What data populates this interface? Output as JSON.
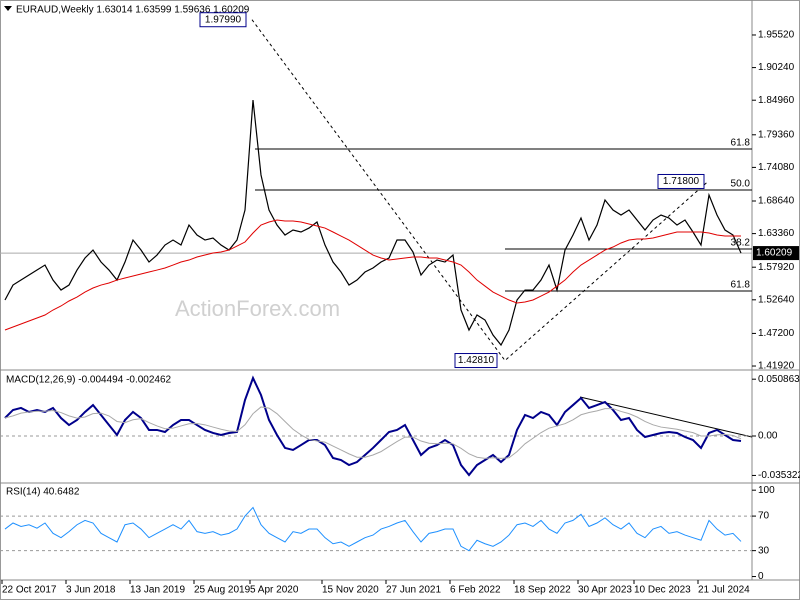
{
  "chart_data": [
    {
      "type": "line",
      "title": "EURAUD,Weekly  1.63014 1.63599 1.59636 1.60209",
      "watermark": "ActionForex.com",
      "categories": [
        "22 Oct 2017",
        null,
        null,
        null,
        null,
        null,
        null,
        null,
        "3 Jun 2018",
        null,
        null,
        null,
        null,
        null,
        null,
        null,
        "13 Jan 2019",
        null,
        null,
        null,
        null,
        null,
        null,
        null,
        "25 Aug 2019",
        null,
        null,
        null,
        null,
        null,
        null,
        "5 Apr 2020",
        null,
        null,
        null,
        null,
        null,
        null,
        null,
        null,
        "15 Nov 2020",
        null,
        null,
        null,
        null,
        null,
        null,
        null,
        "27 Jun 2021",
        null,
        null,
        null,
        null,
        null,
        null,
        null,
        "6 Feb 2022",
        null,
        null,
        null,
        null,
        null,
        null,
        null,
        "18 Sep 2022",
        null,
        null,
        null,
        null,
        null,
        null,
        null,
        "30 Apr 2023",
        null,
        null,
        null,
        null,
        null,
        null,
        "10 Dec 2023",
        null,
        null,
        null,
        null,
        null,
        null,
        null,
        "21 Jul 2024",
        null,
        null,
        null,
        null,
        null
      ],
      "series": [
        {
          "color": "#000000",
          "values": [
            1.5261,
            1.5503,
            1.5584,
            1.5665,
            1.5746,
            1.5827,
            1.5584,
            1.5422,
            1.5503,
            1.5746,
            1.5941,
            1.607,
            1.5876,
            1.5746,
            1.5584,
            1.5876,
            1.6232,
            1.607,
            1.5876,
            1.5989,
            1.6151,
            1.6232,
            1.6151,
            1.6475,
            1.6313,
            1.6232,
            1.6265,
            1.6151,
            1.607,
            1.6232,
            1.6718,
            1.8499,
            1.7285,
            1.6718,
            1.6475,
            1.6313,
            1.6394,
            1.6362,
            1.6426,
            1.6524,
            1.6151,
            1.5876,
            1.5714,
            1.5503,
            1.5584,
            1.5714,
            1.5779,
            1.5876,
            1.5941,
            1.6232,
            1.6232,
            1.6038,
            1.5665,
            1.5827,
            1.5908,
            1.5876,
            1.5989,
            1.5099,
            1.4775,
            1.5018,
            1.4937,
            1.4694,
            1.4532,
            1.4775,
            1.5261,
            1.5422,
            1.5422,
            1.5584,
            1.5827,
            1.5422,
            1.607,
            1.6313,
            1.6588,
            1.6232,
            1.6475,
            1.688,
            1.6718,
            1.6637,
            1.6718,
            1.6556,
            1.6394,
            1.6556,
            1.6637,
            1.6588,
            1.6475,
            1.6556,
            1.6362,
            1.6151,
            1.6961,
            1.6637,
            1.6394,
            1.6313,
            1.6021
          ]
        },
        {
          "color": "#e00000",
          "values": [
            1.4775,
            1.4824,
            1.4872,
            1.4921,
            1.4969,
            1.5018,
            1.5099,
            1.5164,
            1.5245,
            1.5309,
            1.539,
            1.5455,
            1.5503,
            1.5536,
            1.5584,
            1.5617,
            1.5649,
            1.5682,
            1.5714,
            1.5746,
            1.5779,
            1.5827,
            1.5876,
            1.5908,
            1.5957,
            1.5989,
            1.6022,
            1.6038,
            1.607,
            1.6135,
            1.62,
            1.6346,
            1.6475,
            1.6524,
            1.6556,
            1.654,
            1.654,
            1.6524,
            1.6491,
            1.6459,
            1.6426,
            1.6362,
            1.6297,
            1.6232,
            1.6151,
            1.607,
            1.5989,
            1.5941,
            1.5908,
            1.5924,
            1.5941,
            1.5957,
            1.5957,
            1.5941,
            1.5941,
            1.5908,
            1.5876,
            1.5827,
            1.5714,
            1.5584,
            1.5487,
            1.539,
            1.5325,
            1.5261,
            1.5212,
            1.5228,
            1.5261,
            1.5325,
            1.539,
            1.5487,
            1.5584,
            1.5714,
            1.5827,
            1.5908,
            1.5989,
            1.607,
            1.6119,
            1.6184,
            1.6232,
            1.6248,
            1.6248,
            1.6265,
            1.6297,
            1.633,
            1.6362,
            1.6362,
            1.6362,
            1.6362,
            1.6346,
            1.6313,
            1.6297,
            1.6297,
            1.6297
          ]
        }
      ],
      "ylim": [
        1.416,
        2.0086
      ],
      "yticks": [
        {
          "value": 1.9552,
          "label": "1.95520"
        },
        {
          "value": 1.9024,
          "label": "1.90240"
        },
        {
          "value": 1.8496,
          "label": "1.84960"
        },
        {
          "value": 1.7936,
          "label": "1.79360"
        },
        {
          "value": 1.7408,
          "label": "1.74080"
        },
        {
          "value": 1.6864,
          "label": "1.68640"
        },
        {
          "value": 1.6336,
          "label": "1.63360"
        },
        {
          "value": 1.5792,
          "label": "1.57920"
        },
        {
          "value": 1.5264,
          "label": "1.52640"
        },
        {
          "value": 1.472,
          "label": "1.47200"
        },
        {
          "value": 1.4192,
          "label": "1.41920"
        }
      ],
      "last_price": 1.60209,
      "swings": [
        {
          "value": 1.9799,
          "label": "1.97990"
        },
        {
          "value": 1.4281,
          "label": "1.42810"
        },
        {
          "value": 1.718,
          "label": "1.71800"
        }
      ],
      "fib_levels": [
        {
          "value": 1.7706,
          "label": "61.8"
        },
        {
          "value": 1.7042,
          "label": "50.0"
        },
        {
          "value": 1.6087,
          "label": "38.2"
        },
        {
          "value": 1.5406,
          "label": "61.8"
        }
      ]
    },
    {
      "type": "line",
      "title": "MACD(12,26,9) -0.004494 -0.002462",
      "series": [
        {
          "color": "#00008b",
          "values": [
            0.0161,
            0.0233,
            0.0251,
            0.0215,
            0.0233,
            0.0215,
            0.0251,
            0.0161,
            0.0098,
            0.0143,
            0.0215,
            0.0277,
            0.0188,
            0.0098,
            0.0009,
            0.0143,
            0.0215,
            0.0161,
            0.0054,
            0.0054,
            0.0036,
            0.0098,
            0.0143,
            0.0143,
            0.0098,
            0.0054,
            0.0027,
            0.0009,
            0.0027,
            0.0036,
            0.0322,
            0.0519,
            0.0367,
            0.0143,
            0.0009,
            -0.0107,
            -0.0125,
            -0.0081,
            -0.0036,
            -0.0036,
            -0.0081,
            -0.0197,
            -0.0215,
            -0.026,
            -0.0233,
            -0.017,
            -0.0107,
            -0.0036,
            0.0036,
            0.0054,
            0.0098,
            -0.0036,
            -0.017,
            -0.0107,
            -0.0081,
            -0.0036,
            -0.0081,
            -0.026,
            -0.0349,
            -0.026,
            -0.0215,
            -0.017,
            -0.0233,
            -0.017,
            0.0054,
            0.0188,
            0.0161,
            0.0215,
            0.0188,
            0.0098,
            0.0215,
            0.0277,
            0.034,
            0.0251,
            0.0277,
            0.0304,
            0.0233,
            0.0143,
            0.0161,
            0.0054,
            -0.0009,
            0.0009,
            0.0027,
            0.0036,
            0.0027,
            -0.0009,
            -0.0036,
            -0.0107,
            0.0027,
            0.0054,
            0.0009,
            -0.0036,
            -0.0045
          ]
        },
        {
          "color": "#a9a9a9",
          "values": [
            0.0161,
            0.018,
            0.0205,
            0.0215,
            0.0222,
            0.0222,
            0.0228,
            0.021,
            0.018,
            0.016,
            0.017,
            0.02,
            0.0205,
            0.018,
            0.013,
            0.012,
            0.0145,
            0.0155,
            0.012,
            0.009,
            0.0065,
            0.007,
            0.009,
            0.011,
            0.0112,
            0.01,
            0.008,
            0.006,
            0.0045,
            0.004,
            0.01,
            0.02,
            0.026,
            0.025,
            0.02,
            0.013,
            0.006,
            0.001,
            -0.003,
            -0.0045,
            -0.0055,
            -0.009,
            -0.0125,
            -0.016,
            -0.019,
            -0.019,
            -0.017,
            -0.014,
            -0.0095,
            -0.005,
            -0.001,
            -0.001,
            -0.0045,
            -0.0065,
            -0.007,
            -0.0065,
            -0.007,
            -0.011,
            -0.016,
            -0.019,
            -0.02,
            -0.0195,
            -0.02,
            -0.0195,
            -0.014,
            -0.007,
            -0.002,
            0.003,
            0.007,
            0.009,
            0.011,
            0.0145,
            0.019,
            0.021,
            0.0225,
            0.0245,
            0.0245,
            0.022,
            0.02,
            0.017,
            0.013,
            0.01,
            0.008,
            0.007,
            0.006,
            0.0045,
            0.003,
            0,
            0,
            0.001,
            0.0015,
            0.0005,
            -0.0025
          ]
        }
      ],
      "ylim": [
        -0.0403,
        0.0573
      ],
      "yticks": [
        0.050863,
        {
          "value": 0,
          "label": "0.00"
        },
        -0.035322
      ],
      "levels": [
        0
      ]
    },
    {
      "type": "line",
      "title": "RSI(14) 40.6482",
      "series": [
        {
          "color": "#1e90ff",
          "values": [
            55,
            62,
            58,
            60,
            56,
            62,
            50,
            45,
            52,
            60,
            65,
            62,
            50,
            45,
            40,
            60,
            62,
            55,
            45,
            50,
            55,
            60,
            55,
            65,
            52,
            50,
            52,
            48,
            50,
            55,
            70,
            80,
            60,
            50,
            45,
            40,
            52,
            50,
            55,
            55,
            45,
            38,
            40,
            35,
            40,
            45,
            48,
            55,
            58,
            62,
            65,
            52,
            40,
            50,
            52,
            55,
            55,
            35,
            30,
            42,
            38,
            35,
            40,
            48,
            60,
            62,
            58,
            65,
            55,
            50,
            62,
            65,
            72,
            58,
            62,
            68,
            60,
            55,
            62,
            50,
            45,
            55,
            58,
            50,
            52,
            48,
            45,
            42,
            65,
            55,
            48,
            50,
            40.6482
          ]
        }
      ],
      "ylim": [
        -4,
        106
      ],
      "yticks": [
        100,
        70,
        30,
        0
      ],
      "levels": [
        70,
        30
      ]
    }
  ]
}
